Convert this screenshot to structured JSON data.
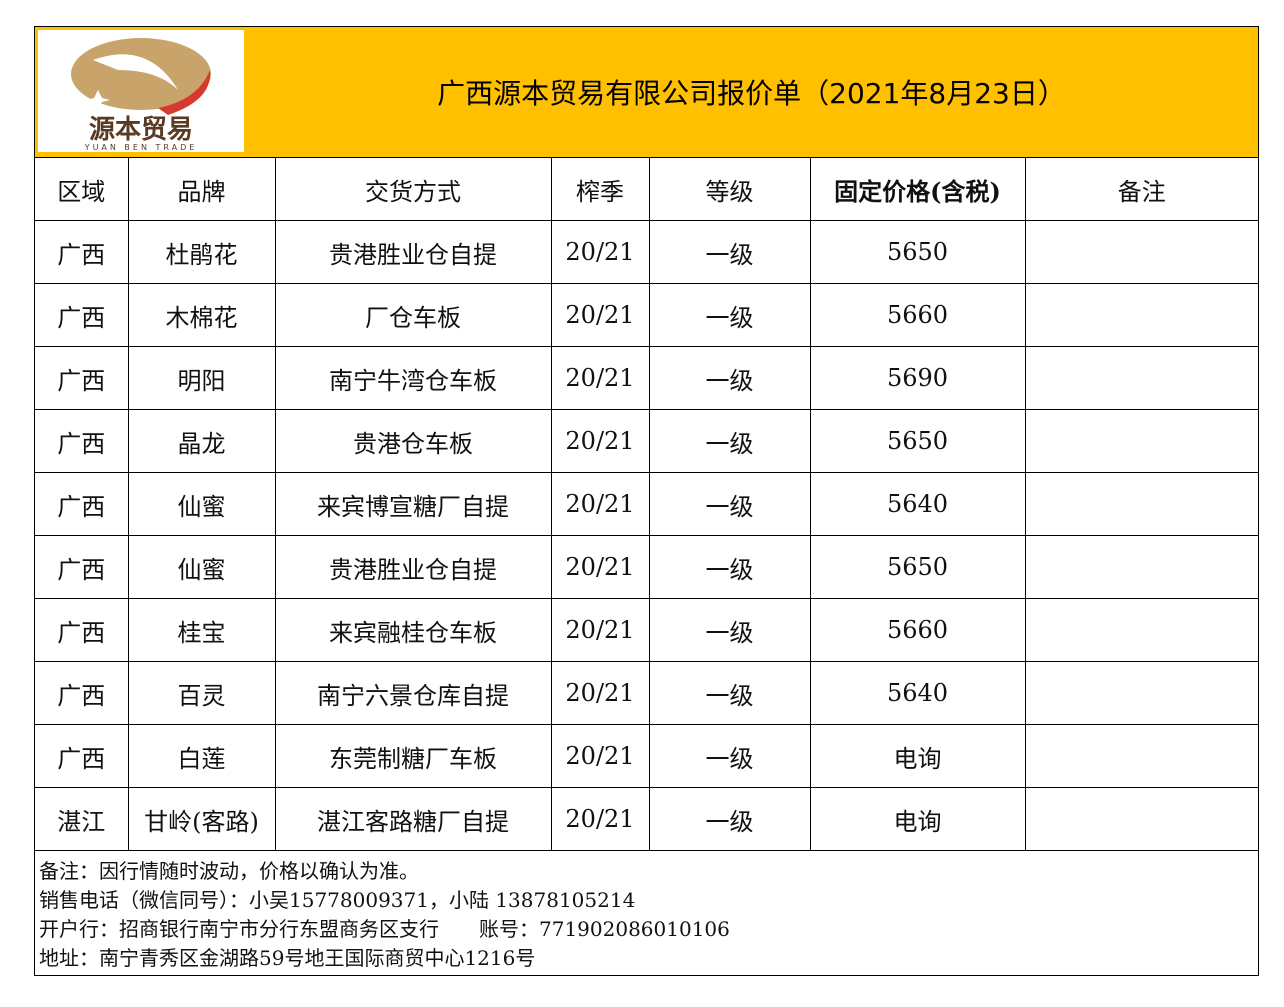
{
  "logo": {
    "text_cn": "源本贸易",
    "text_en": "YUAN BEN TRADE",
    "colors": {
      "gold": "#C9A46A",
      "red": "#D63A2F",
      "brown": "#5A3A22"
    }
  },
  "title": "广西源本贸易有限公司报价单（2021年8月23日）",
  "colors": {
    "header_band": "#FFC000"
  },
  "table": {
    "headers": [
      "区域",
      "品牌",
      "交货方式",
      "榨季",
      "等级",
      "固定价格(含税)",
      "备注"
    ],
    "rows": [
      [
        "广西",
        "杜鹃花",
        "贵港胜业仓自提",
        "20/21",
        "一级",
        "5650",
        ""
      ],
      [
        "广西",
        "木棉花",
        "厂仓车板",
        "20/21",
        "一级",
        "5660",
        ""
      ],
      [
        "广西",
        "明阳",
        "南宁牛湾仓车板",
        "20/21",
        "一级",
        "5690",
        ""
      ],
      [
        "广西",
        "晶龙",
        "贵港仓车板",
        "20/21",
        "一级",
        "5650",
        ""
      ],
      [
        "广西",
        "仙蜜",
        "来宾博宣糖厂自提",
        "20/21",
        "一级",
        "5640",
        ""
      ],
      [
        "广西",
        "仙蜜",
        "贵港胜业仓自提",
        "20/21",
        "一级",
        "5650",
        ""
      ],
      [
        "广西",
        "桂宝",
        "来宾融桂仓车板",
        "20/21",
        "一级",
        "5660",
        ""
      ],
      [
        "广西",
        "百灵",
        "南宁六景仓库自提",
        "20/21",
        "一级",
        "5640",
        ""
      ],
      [
        "广西",
        "白莲",
        "东莞制糖厂车板",
        "20/21",
        "一级",
        "电询",
        ""
      ],
      [
        "湛江",
        "甘岭(客路)",
        "湛江客路糖厂自提",
        "20/21",
        "一级",
        "电询",
        ""
      ]
    ]
  },
  "footer": [
    "备注：因行情随时波动，价格以确认为准。",
    "销售电话（微信同号）：小吴15778009371，小陆 13878105214",
    "开户行：招商银行南宁市分行东盟商务区支行　　账号：771902086010106",
    "地址：南宁青秀区金湖路59号地王国际商贸中心1216号"
  ]
}
